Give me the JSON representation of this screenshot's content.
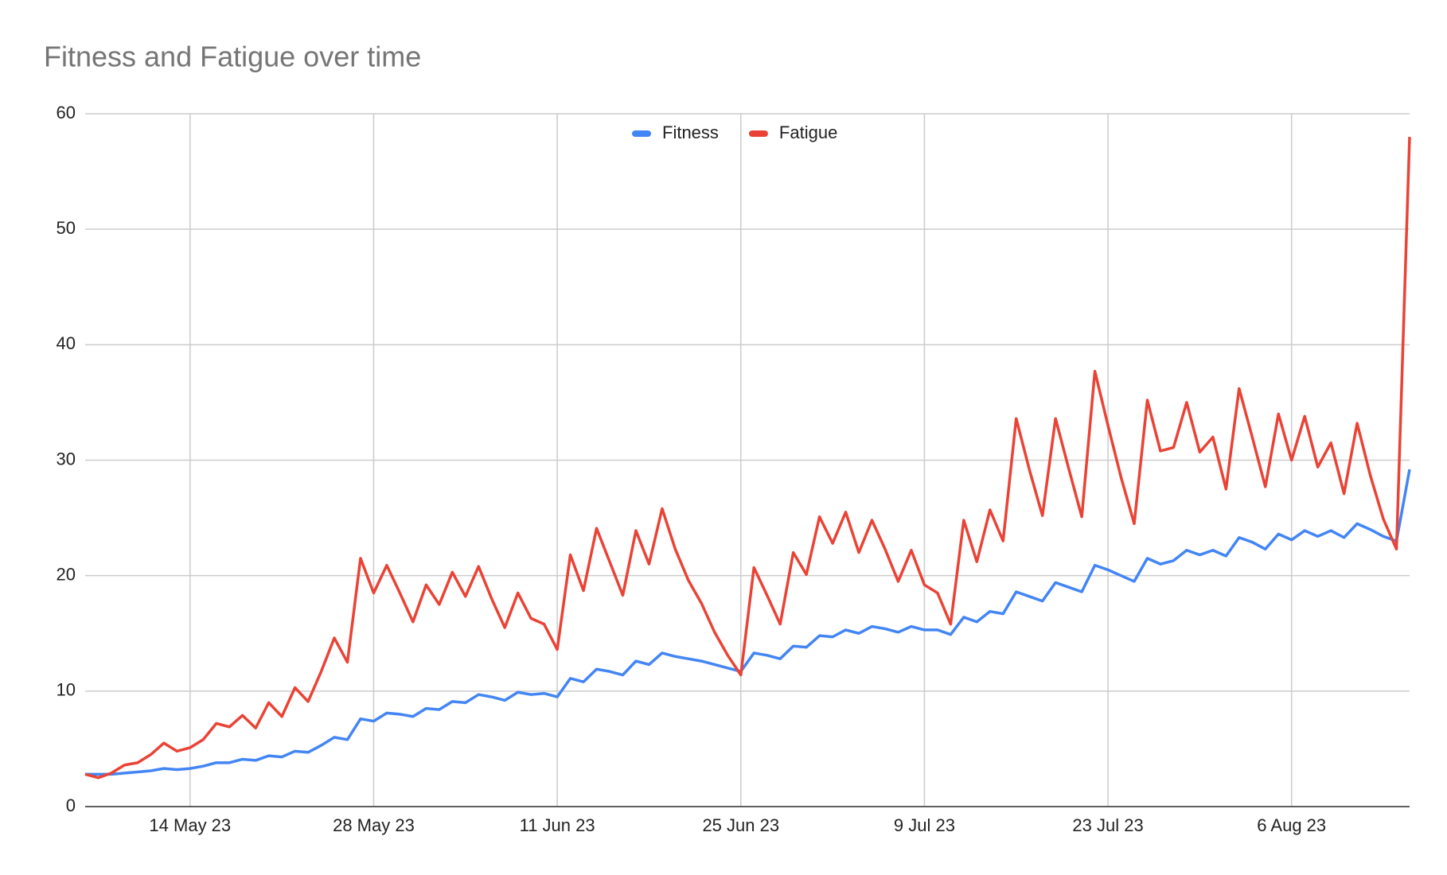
{
  "chart_data": {
    "type": "line",
    "title": "Fitness and Fatigue over time",
    "x": [
      "2023-05-06",
      "2023-05-07",
      "2023-05-08",
      "2023-05-09",
      "2023-05-10",
      "2023-05-11",
      "2023-05-12",
      "2023-05-13",
      "2023-05-14",
      "2023-05-15",
      "2023-05-16",
      "2023-05-17",
      "2023-05-18",
      "2023-05-19",
      "2023-05-20",
      "2023-05-21",
      "2023-05-22",
      "2023-05-23",
      "2023-05-24",
      "2023-05-25",
      "2023-05-26",
      "2023-05-27",
      "2023-05-28",
      "2023-05-29",
      "2023-05-30",
      "2023-05-31",
      "2023-06-01",
      "2023-06-02",
      "2023-06-03",
      "2023-06-04",
      "2023-06-05",
      "2023-06-06",
      "2023-06-07",
      "2023-06-08",
      "2023-06-09",
      "2023-06-10",
      "2023-06-11",
      "2023-06-12",
      "2023-06-13",
      "2023-06-14",
      "2023-06-15",
      "2023-06-16",
      "2023-06-17",
      "2023-06-18",
      "2023-06-19",
      "2023-06-20",
      "2023-06-21",
      "2023-06-22",
      "2023-06-23",
      "2023-06-24",
      "2023-06-25",
      "2023-06-26",
      "2023-06-27",
      "2023-06-28",
      "2023-06-29",
      "2023-06-30",
      "2023-07-01",
      "2023-07-02",
      "2023-07-03",
      "2023-07-04",
      "2023-07-05",
      "2023-07-06",
      "2023-07-07",
      "2023-07-08",
      "2023-07-09",
      "2023-07-10",
      "2023-07-11",
      "2023-07-12",
      "2023-07-13",
      "2023-07-14",
      "2023-07-15",
      "2023-07-16",
      "2023-07-17",
      "2023-07-18",
      "2023-07-19",
      "2023-07-20",
      "2023-07-21",
      "2023-07-22",
      "2023-07-23",
      "2023-07-24",
      "2023-07-25",
      "2023-07-26",
      "2023-07-27",
      "2023-07-28",
      "2023-07-29",
      "2023-07-30",
      "2023-07-31",
      "2023-08-01",
      "2023-08-02",
      "2023-08-03",
      "2023-08-04",
      "2023-08-05",
      "2023-08-06",
      "2023-08-07",
      "2023-08-08",
      "2023-08-09",
      "2023-08-10",
      "2023-08-11",
      "2023-08-12",
      "2023-08-13",
      "2023-08-14",
      "2023-08-15"
    ],
    "series": [
      {
        "name": "Fitness",
        "color": "#4285f4",
        "values": [
          2.8,
          2.8,
          2.8,
          2.9,
          3.0,
          3.1,
          3.3,
          3.2,
          3.3,
          3.5,
          3.8,
          3.8,
          4.1,
          4.0,
          4.4,
          4.3,
          4.8,
          4.7,
          5.3,
          6.0,
          5.8,
          7.6,
          7.4,
          8.1,
          8.0,
          7.8,
          8.5,
          8.4,
          9.1,
          9.0,
          9.7,
          9.5,
          9.2,
          9.9,
          9.7,
          9.8,
          9.5,
          11.1,
          10.8,
          11.9,
          11.7,
          11.4,
          12.6,
          12.3,
          13.3,
          13.0,
          12.8,
          12.6,
          12.3,
          12.0,
          11.7,
          13.3,
          13.1,
          12.8,
          13.9,
          13.8,
          14.8,
          14.7,
          15.3,
          15.0,
          15.6,
          15.4,
          15.1,
          15.6,
          15.3,
          15.3,
          14.9,
          16.4,
          16.0,
          16.9,
          16.7,
          18.6,
          18.2,
          17.8,
          19.4,
          19.0,
          18.6,
          20.9,
          20.5,
          20.0,
          19.5,
          21.5,
          21.0,
          21.3,
          22.2,
          21.8,
          22.2,
          21.7,
          23.3,
          22.9,
          22.3,
          23.6,
          23.1,
          23.9,
          23.4,
          23.9,
          23.3,
          24.5,
          24.0,
          23.4,
          23.0,
          29.2
        ]
      },
      {
        "name": "Fatigue",
        "color": "#ea4335",
        "values": [
          2.8,
          2.5,
          2.9,
          3.6,
          3.8,
          4.5,
          5.5,
          4.8,
          5.1,
          5.8,
          7.2,
          6.9,
          7.9,
          6.8,
          9.0,
          7.8,
          10.3,
          9.1,
          11.7,
          14.6,
          12.5,
          21.5,
          18.5,
          20.9,
          18.5,
          16.0,
          19.2,
          17.5,
          20.3,
          18.2,
          20.8,
          18.0,
          15.5,
          18.5,
          16.3,
          15.8,
          13.6,
          21.8,
          18.7,
          24.1,
          21.2,
          18.3,
          23.9,
          21.0,
          25.8,
          22.3,
          19.6,
          17.6,
          15.1,
          13.1,
          11.4,
          20.7,
          18.3,
          15.8,
          22.0,
          20.1,
          25.1,
          22.8,
          25.5,
          22.0,
          24.8,
          22.3,
          19.5,
          22.2,
          19.2,
          18.5,
          15.8,
          24.8,
          21.2,
          25.7,
          23.0,
          33.6,
          29.2,
          25.2,
          33.6,
          29.3,
          25.1,
          37.7,
          33.0,
          28.5,
          24.5,
          35.2,
          30.8,
          31.1,
          35.0,
          30.7,
          32.0,
          27.5,
          36.2,
          32.0,
          27.7,
          34.0,
          30.0,
          33.8,
          29.4,
          31.5,
          27.1,
          33.2,
          28.7,
          24.9,
          22.3,
          58.0
        ]
      }
    ],
    "xlim": [
      "2023-05-06",
      "2023-08-15"
    ],
    "xticks": [
      {
        "value": "2023-05-14",
        "label": "14 May 23"
      },
      {
        "value": "2023-05-28",
        "label": "28 May 23"
      },
      {
        "value": "2023-06-11",
        "label": "11 Jun 23"
      },
      {
        "value": "2023-06-25",
        "label": "25 Jun 23"
      },
      {
        "value": "2023-07-09",
        "label": "9 Jul 23"
      },
      {
        "value": "2023-07-23",
        "label": "23 Jul 23"
      },
      {
        "value": "2023-08-06",
        "label": "6 Aug 23"
      }
    ],
    "ylim": [
      0,
      60
    ],
    "yticks": [
      0,
      10,
      20,
      30,
      40,
      50,
      60
    ],
    "grid": true,
    "legend": "top"
  }
}
